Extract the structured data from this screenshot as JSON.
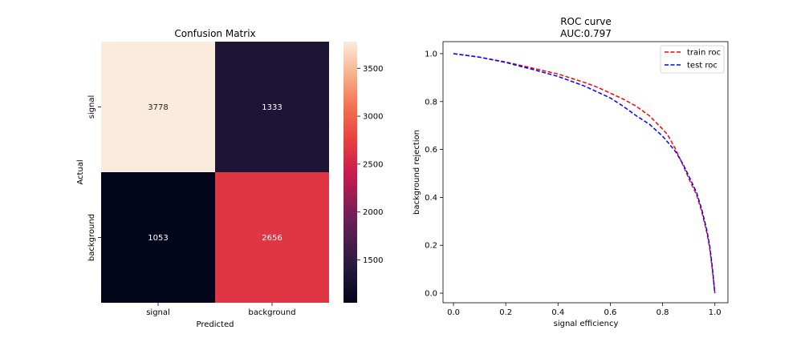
{
  "chart_data": [
    {
      "type": "heatmap",
      "title": "Confusion Matrix",
      "xlabel": "Predicted",
      "ylabel": "Actual",
      "x_categories": [
        "signal",
        "background"
      ],
      "y_categories": [
        "signal",
        "background"
      ],
      "values": [
        [
          3778,
          1333
        ],
        [
          1053,
          2656
        ]
      ],
      "value_labels": [
        "3778",
        "1333",
        "1053",
        "2656"
      ],
      "colorbar": {
        "range": [
          1053,
          3778
        ],
        "ticks": [
          1500,
          2000,
          2500,
          3000,
          3500
        ],
        "tick_labels": [
          "1500",
          "2000",
          "2500",
          "3000",
          "3500"
        ],
        "colormap": "rocket"
      }
    },
    {
      "type": "line",
      "title": "ROC curve",
      "subtitle": "AUC:0.797",
      "xlabel": "signal efficiency",
      "ylabel": "background rejection",
      "xlim": [
        -0.04,
        1.05
      ],
      "ylim": [
        -0.04,
        1.05
      ],
      "xticks": [
        0.0,
        0.2,
        0.4,
        0.6,
        0.8,
        1.0
      ],
      "xtick_labels": [
        "0.0",
        "0.2",
        "0.4",
        "0.6",
        "0.8",
        "1.0"
      ],
      "yticks": [
        0.0,
        0.2,
        0.4,
        0.6,
        0.8,
        1.0
      ],
      "ytick_labels": [
        "0.0",
        "0.2",
        "0.4",
        "0.6",
        "0.8",
        "1.0"
      ],
      "grid": false,
      "legend_position": "top-right",
      "series": [
        {
          "name": "train roc",
          "color": "#ff0000",
          "style": "dashed",
          "x": [
            0.0,
            0.1,
            0.2,
            0.3,
            0.4,
            0.5,
            0.55,
            0.6,
            0.65,
            0.7,
            0.75,
            0.8,
            0.82,
            0.85,
            0.88,
            0.9,
            0.93,
            0.95,
            0.97,
            0.98,
            0.99,
            1.0
          ],
          "y": [
            1.0,
            0.985,
            0.965,
            0.94,
            0.915,
            0.88,
            0.86,
            0.835,
            0.81,
            0.78,
            0.74,
            0.685,
            0.66,
            0.6,
            0.53,
            0.48,
            0.41,
            0.34,
            0.25,
            0.19,
            0.1,
            0.0
          ]
        },
        {
          "name": "test roc",
          "color": "#0000ff",
          "style": "dashed",
          "x": [
            0.0,
            0.1,
            0.2,
            0.3,
            0.4,
            0.5,
            0.55,
            0.6,
            0.65,
            0.7,
            0.75,
            0.8,
            0.82,
            0.85,
            0.88,
            0.9,
            0.93,
            0.95,
            0.97,
            0.98,
            0.99,
            1.0
          ],
          "y": [
            1.0,
            0.985,
            0.963,
            0.935,
            0.905,
            0.865,
            0.84,
            0.815,
            0.78,
            0.74,
            0.705,
            0.655,
            0.63,
            0.59,
            0.535,
            0.49,
            0.42,
            0.35,
            0.26,
            0.2,
            0.11,
            0.0
          ]
        }
      ]
    }
  ]
}
